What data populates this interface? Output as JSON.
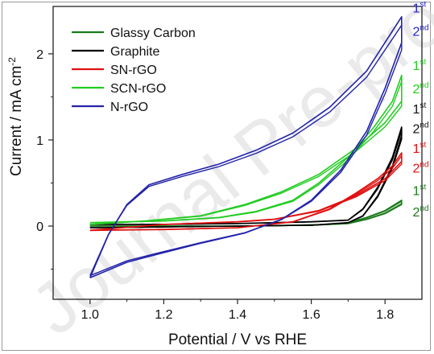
{
  "watermark": "Journal Pre-proof",
  "chart_data": {
    "type": "line",
    "title": "",
    "xlabel": "Potential / V vs RHE",
    "ylabel": "Current / mA cm",
    "ylabel_sup": "-2",
    "xlim": [
      0.9,
      1.9
    ],
    "ylim": [
      -0.85,
      2.55
    ],
    "xticks": [
      "1.0",
      "1.2",
      "1.4",
      "1.6",
      "1.8"
    ],
    "yticks": [
      "0",
      "1",
      "2"
    ],
    "grid": false,
    "legend_position": "top-left",
    "series": [
      {
        "name": "Glassy Carbon",
        "color": "#1a7a1a",
        "forward": [
          [
            1.0,
            0.0
          ],
          [
            1.2,
            0.0
          ],
          [
            1.4,
            0.0
          ],
          [
            1.55,
            0.01
          ],
          [
            1.65,
            0.02
          ],
          [
            1.7,
            0.04
          ],
          [
            1.75,
            0.1
          ],
          [
            1.8,
            0.18
          ],
          [
            1.845,
            0.3
          ]
        ],
        "reverse": [
          [
            1.845,
            0.26
          ],
          [
            1.8,
            0.15
          ],
          [
            1.75,
            0.08
          ],
          [
            1.7,
            0.03
          ],
          [
            1.6,
            0.01
          ],
          [
            1.4,
            0.0
          ],
          [
            1.2,
            0.0
          ],
          [
            1.0,
            0.0
          ]
        ]
      },
      {
        "name": "Graphite",
        "color": "#000000",
        "forward": [
          [
            1.0,
            0.02
          ],
          [
            1.2,
            0.02
          ],
          [
            1.4,
            0.03
          ],
          [
            1.6,
            0.05
          ],
          [
            1.7,
            0.07
          ],
          [
            1.74,
            0.2
          ],
          [
            1.78,
            0.45
          ],
          [
            1.82,
            0.8
          ],
          [
            1.845,
            1.15
          ]
        ],
        "reverse": [
          [
            1.845,
            1.05
          ],
          [
            1.82,
            0.7
          ],
          [
            1.78,
            0.35
          ],
          [
            1.74,
            0.12
          ],
          [
            1.7,
            0.04
          ],
          [
            1.6,
            0.01
          ],
          [
            1.4,
            0.0
          ],
          [
            1.2,
            -0.01
          ],
          [
            1.0,
            -0.02
          ]
        ]
      },
      {
        "name": "SN-rGO",
        "color": "#e01010",
        "forward": [
          [
            1.0,
            -0.05
          ],
          [
            1.2,
            -0.04
          ],
          [
            1.4,
            -0.02
          ],
          [
            1.55,
            0.05
          ],
          [
            1.65,
            0.2
          ],
          [
            1.72,
            0.38
          ],
          [
            1.78,
            0.55
          ],
          [
            1.82,
            0.7
          ],
          [
            1.845,
            0.85
          ]
        ],
        "reverse": [
          [
            1.845,
            0.75
          ],
          [
            1.8,
            0.55
          ],
          [
            1.72,
            0.35
          ],
          [
            1.62,
            0.18
          ],
          [
            1.5,
            0.08
          ],
          [
            1.4,
            0.05
          ],
          [
            1.2,
            0.02
          ],
          [
            1.0,
            -0.05
          ]
        ]
      },
      {
        "name": "SCN-rGO",
        "color": "#22cc22",
        "forward": [
          [
            1.0,
            0.04
          ],
          [
            1.2,
            0.06
          ],
          [
            1.35,
            0.1
          ],
          [
            1.45,
            0.17
          ],
          [
            1.55,
            0.3
          ],
          [
            1.62,
            0.5
          ],
          [
            1.7,
            0.8
          ],
          [
            1.77,
            1.15
          ],
          [
            1.82,
            1.45
          ],
          [
            1.845,
            1.75
          ]
        ],
        "reverse": [
          [
            1.845,
            1.45
          ],
          [
            1.8,
            1.2
          ],
          [
            1.72,
            0.9
          ],
          [
            1.62,
            0.6
          ],
          [
            1.52,
            0.4
          ],
          [
            1.42,
            0.25
          ],
          [
            1.3,
            0.12
          ],
          [
            1.15,
            0.06
          ],
          [
            1.0,
            0.02
          ]
        ]
      },
      {
        "name": "N-rGO",
        "color": "#2222aa",
        "forward": [
          [
            1.0,
            -0.6
          ],
          [
            1.05,
            -0.1
          ],
          [
            1.1,
            0.25
          ],
          [
            1.16,
            0.48
          ],
          [
            1.25,
            0.6
          ],
          [
            1.35,
            0.72
          ],
          [
            1.45,
            0.88
          ],
          [
            1.55,
            1.08
          ],
          [
            1.65,
            1.38
          ],
          [
            1.75,
            1.8
          ],
          [
            1.845,
            2.43
          ]
        ],
        "reverse": [
          [
            1.845,
            2.13
          ],
          [
            1.8,
            1.6
          ],
          [
            1.75,
            1.1
          ],
          [
            1.68,
            0.65
          ],
          [
            1.6,
            0.3
          ],
          [
            1.52,
            0.08
          ],
          [
            1.42,
            -0.08
          ],
          [
            1.3,
            -0.2
          ],
          [
            1.18,
            -0.33
          ],
          [
            1.1,
            -0.42
          ],
          [
            1.0,
            -0.6
          ]
        ]
      }
    ],
    "annotations": [
      {
        "base": "1",
        "sup": "st",
        "x": 1.875,
        "y": 2.48,
        "color": "#2222cc"
      },
      {
        "base": "2",
        "sup": "nd",
        "x": 1.875,
        "y": 2.21,
        "color": "#2222cc"
      },
      {
        "base": "1",
        "sup": "st",
        "x": 1.875,
        "y": 1.81,
        "color": "#22cc22"
      },
      {
        "base": "2",
        "sup": "nd",
        "x": 1.875,
        "y": 1.54,
        "color": "#22cc22"
      },
      {
        "base": "1",
        "sup": "st",
        "x": 1.875,
        "y": 1.31,
        "color": "#111111"
      },
      {
        "base": "2",
        "sup": "nd",
        "x": 1.875,
        "y": 1.08,
        "color": "#111111"
      },
      {
        "base": "1",
        "sup": "st",
        "x": 1.875,
        "y": 0.85,
        "color": "#e01010"
      },
      {
        "base": "2",
        "sup": "nd",
        "x": 1.875,
        "y": 0.62,
        "color": "#e01010"
      },
      {
        "base": "1",
        "sup": "st",
        "x": 1.875,
        "y": 0.36,
        "color": "#1a7a1a"
      },
      {
        "base": "2",
        "sup": "nd",
        "x": 1.875,
        "y": 0.11,
        "color": "#1a7a1a"
      }
    ]
  }
}
